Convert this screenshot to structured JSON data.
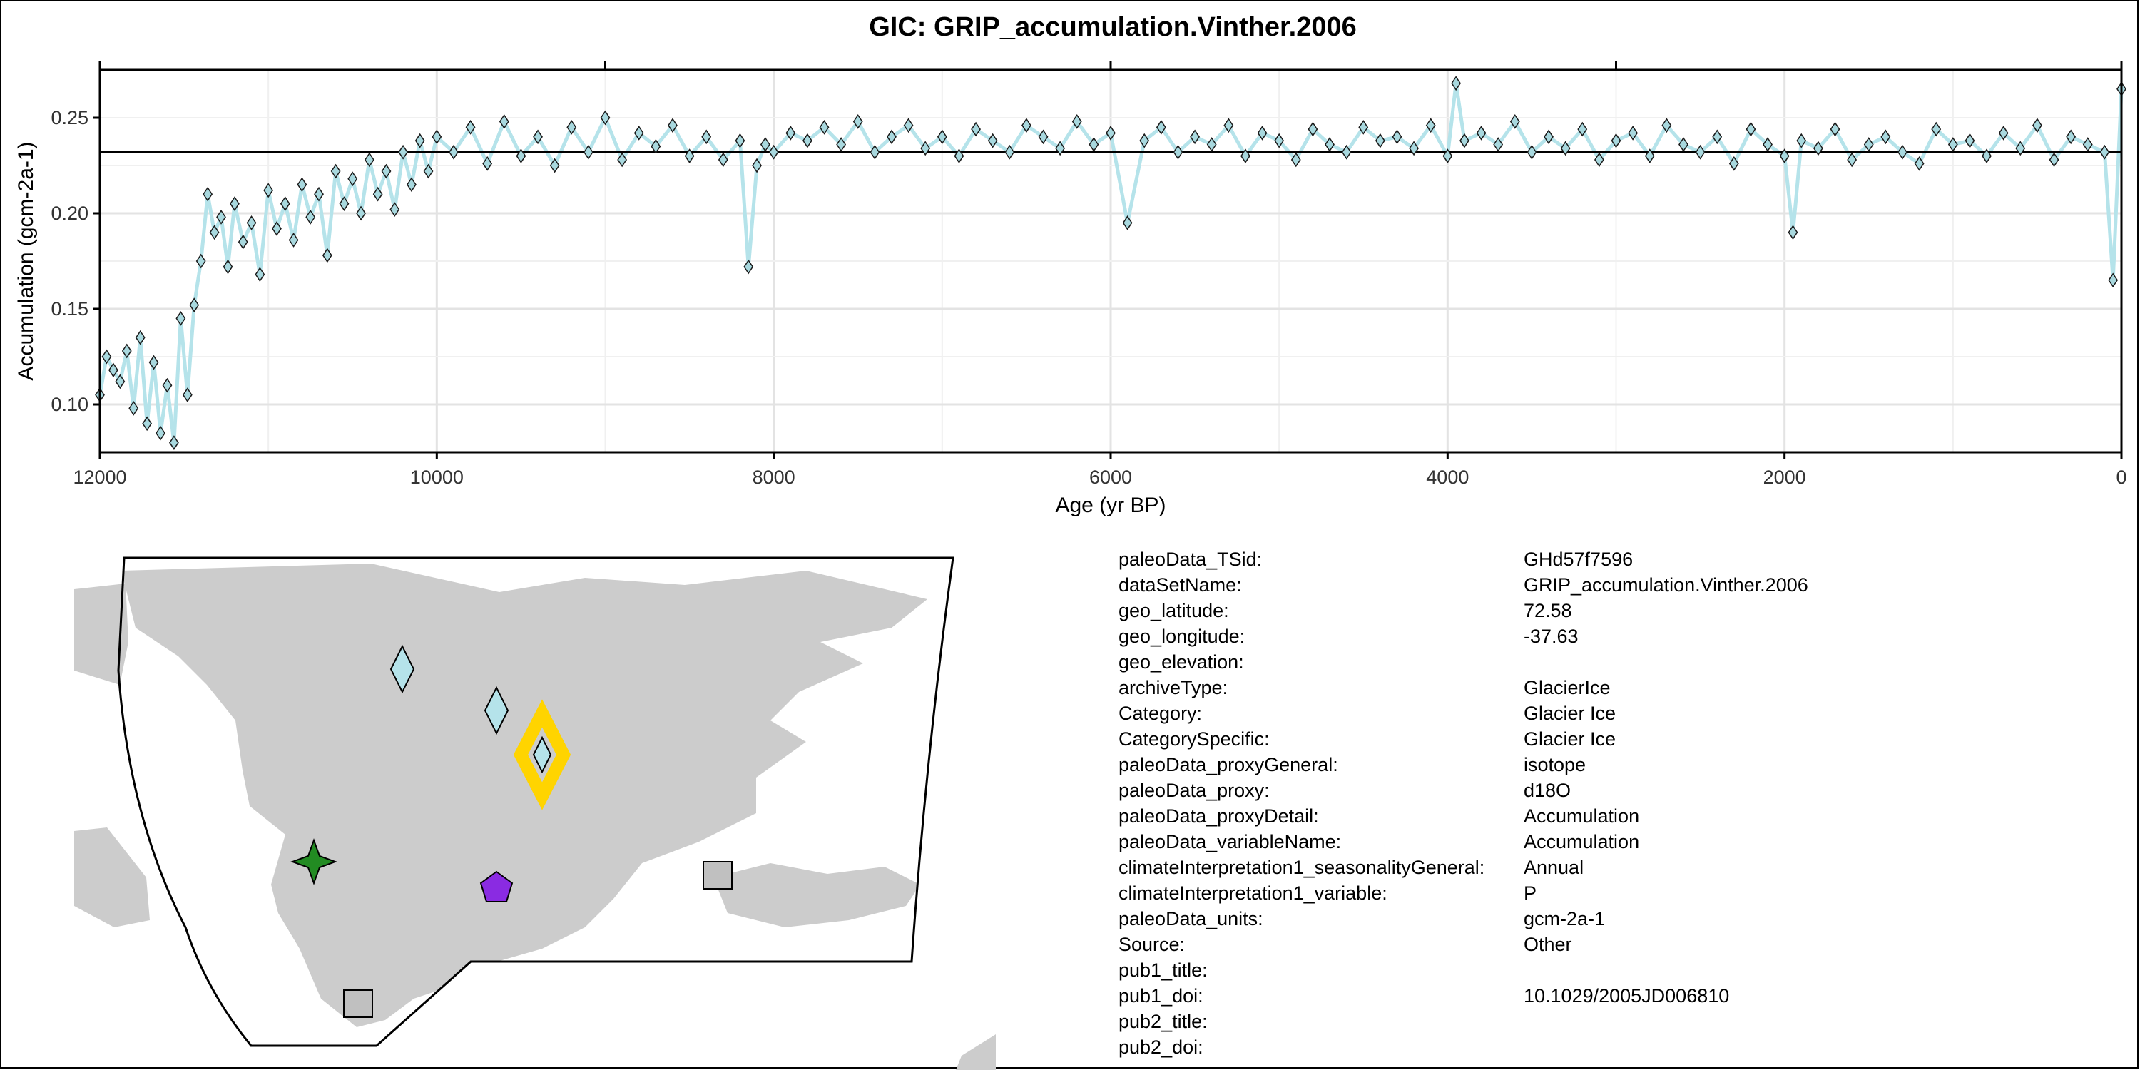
{
  "chart_data": {
    "type": "line",
    "title": "GIC: GRIP_accumulation.Vinther.2006",
    "xlabel": "Age (yr BP)",
    "ylabel": "Accumulation (gcm-2a-1)",
    "xlim": [
      12000,
      0
    ],
    "ylim": [
      0.075,
      0.275
    ],
    "x_axis_reversed": true,
    "x_ticks": [
      12000,
      10000,
      8000,
      6000,
      4000,
      2000,
      0
    ],
    "x_tick_labels": [
      "12000",
      "10000",
      "8000",
      "6000",
      "4000",
      "2000",
      "0"
    ],
    "y_ticks": [
      0.1,
      0.15,
      0.2,
      0.25
    ],
    "y_tick_labels": [
      "0.10",
      "0.15",
      "0.20",
      "0.25"
    ],
    "top_axis_ticks": [
      12000,
      9000,
      6000,
      3000,
      0
    ],
    "reference_line_y": 0.232,
    "grid": true,
    "line_color": "#b5e3ea",
    "marker": "diamond",
    "marker_fill": "#a8d8de",
    "marker_edge": "#1a1a1a",
    "series": [
      {
        "values_note_x": "age in yr BP, y in gcm-2a-1 (estimated)",
        "x": [
          12000,
          11960,
          11920,
          11880,
          11840,
          11800,
          11760,
          11720,
          11680,
          11640,
          11600,
          11560,
          11520,
          11480,
          11440,
          11400,
          11360,
          11320,
          11280,
          11240,
          11200,
          11150,
          11100,
          11050,
          11000,
          10950,
          10900,
          10850,
          10800,
          10750,
          10700,
          10650,
          10600,
          10550,
          10500,
          10450,
          10400,
          10350,
          10300,
          10250,
          10200,
          10150,
          10100,
          10050,
          10000,
          9900,
          9800,
          9700,
          9600,
          9500,
          9400,
          9300,
          9200,
          9100,
          9000,
          8900,
          8800,
          8700,
          8600,
          8500,
          8400,
          8300,
          8200,
          8150,
          8100,
          8050,
          8000,
          7900,
          7800,
          7700,
          7600,
          7500,
          7400,
          7300,
          7200,
          7100,
          7000,
          6900,
          6800,
          6700,
          6600,
          6500,
          6400,
          6300,
          6200,
          6100,
          6000,
          5900,
          5800,
          5700,
          5600,
          5500,
          5400,
          5300,
          5200,
          5100,
          5000,
          4900,
          4800,
          4700,
          4600,
          4500,
          4400,
          4300,
          4200,
          4100,
          4000,
          3950,
          3900,
          3800,
          3700,
          3600,
          3500,
          3400,
          3300,
          3200,
          3100,
          3000,
          2900,
          2800,
          2700,
          2600,
          2500,
          2400,
          2300,
          2200,
          2100,
          2000,
          1950,
          1900,
          1800,
          1700,
          1600,
          1500,
          1400,
          1300,
          1200,
          1100,
          1000,
          900,
          800,
          700,
          600,
          500,
          400,
          300,
          200,
          100,
          50,
          0
        ],
        "y": [
          0.105,
          0.125,
          0.118,
          0.112,
          0.128,
          0.098,
          0.135,
          0.09,
          0.122,
          0.085,
          0.11,
          0.08,
          0.145,
          0.105,
          0.152,
          0.175,
          0.21,
          0.19,
          0.198,
          0.172,
          0.205,
          0.185,
          0.195,
          0.168,
          0.212,
          0.192,
          0.205,
          0.186,
          0.215,
          0.198,
          0.21,
          0.178,
          0.222,
          0.205,
          0.218,
          0.2,
          0.228,
          0.21,
          0.222,
          0.202,
          0.232,
          0.215,
          0.238,
          0.222,
          0.24,
          0.232,
          0.245,
          0.226,
          0.248,
          0.23,
          0.24,
          0.225,
          0.245,
          0.232,
          0.25,
          0.228,
          0.242,
          0.235,
          0.246,
          0.23,
          0.24,
          0.228,
          0.238,
          0.172,
          0.225,
          0.236,
          0.232,
          0.242,
          0.238,
          0.245,
          0.236,
          0.248,
          0.232,
          0.24,
          0.246,
          0.234,
          0.24,
          0.23,
          0.244,
          0.238,
          0.232,
          0.246,
          0.24,
          0.234,
          0.248,
          0.236,
          0.242,
          0.195,
          0.238,
          0.245,
          0.232,
          0.24,
          0.236,
          0.246,
          0.23,
          0.242,
          0.238,
          0.228,
          0.244,
          0.236,
          0.232,
          0.245,
          0.238,
          0.24,
          0.234,
          0.246,
          0.23,
          0.268,
          0.238,
          0.242,
          0.236,
          0.248,
          0.232,
          0.24,
          0.234,
          0.244,
          0.228,
          0.238,
          0.242,
          0.23,
          0.246,
          0.236,
          0.232,
          0.24,
          0.226,
          0.244,
          0.236,
          0.23,
          0.19,
          0.238,
          0.234,
          0.244,
          0.228,
          0.236,
          0.24,
          0.232,
          0.226,
          0.244,
          0.236,
          0.238,
          0.23,
          0.242,
          0.234,
          0.246,
          0.228,
          0.24,
          0.236,
          0.232,
          0.165,
          0.265
        ]
      }
    ]
  },
  "map": {
    "markers": [
      {
        "shape": "diamond",
        "color": "#b5e3ea",
        "highlighted": false
      },
      {
        "shape": "diamond",
        "color": "#b5e3ea",
        "highlighted": false
      },
      {
        "shape": "diamond",
        "color": "#b5e3ea",
        "highlighted": true,
        "highlight_color": "#ffd400"
      },
      {
        "shape": "star",
        "color": "#228b22"
      },
      {
        "shape": "pentagon",
        "color": "#8a2be2"
      },
      {
        "shape": "square",
        "color": "#c0c0c0"
      },
      {
        "shape": "square",
        "color": "#c0c0c0"
      }
    ],
    "land_color": "#cccccc"
  },
  "metadata": [
    {
      "key": "paleoData_TSid:",
      "value": "GHd57f7596"
    },
    {
      "key": "dataSetName:",
      "value": "GRIP_accumulation.Vinther.2006"
    },
    {
      "key": "geo_latitude:",
      "value": "72.58"
    },
    {
      "key": "geo_longitude:",
      "value": "-37.63"
    },
    {
      "key": "geo_elevation:",
      "value": ""
    },
    {
      "key": "archiveType:",
      "value": "GlacierIce"
    },
    {
      "key": "Category:",
      "value": "Glacier Ice"
    },
    {
      "key": "CategorySpecific:",
      "value": "Glacier Ice"
    },
    {
      "key": "paleoData_proxyGeneral:",
      "value": "isotope"
    },
    {
      "key": "paleoData_proxy:",
      "value": "d18O"
    },
    {
      "key": "paleoData_proxyDetail:",
      "value": "Accumulation"
    },
    {
      "key": "paleoData_variableName:",
      "value": "Accumulation"
    },
    {
      "key": "climateInterpretation1_seasonalityGeneral:",
      "value": "Annual"
    },
    {
      "key": "climateInterpretation1_variable:",
      "value": "P"
    },
    {
      "key": "paleoData_units:",
      "value": "gcm-2a-1"
    },
    {
      "key": "Source:",
      "value": "Other"
    },
    {
      "key": "pub1_title:",
      "value": ""
    },
    {
      "key": "pub1_doi:",
      "value": "10.1029/2005JD006810"
    },
    {
      "key": "pub2_title:",
      "value": ""
    },
    {
      "key": "pub2_doi:",
      "value": ""
    }
  ]
}
